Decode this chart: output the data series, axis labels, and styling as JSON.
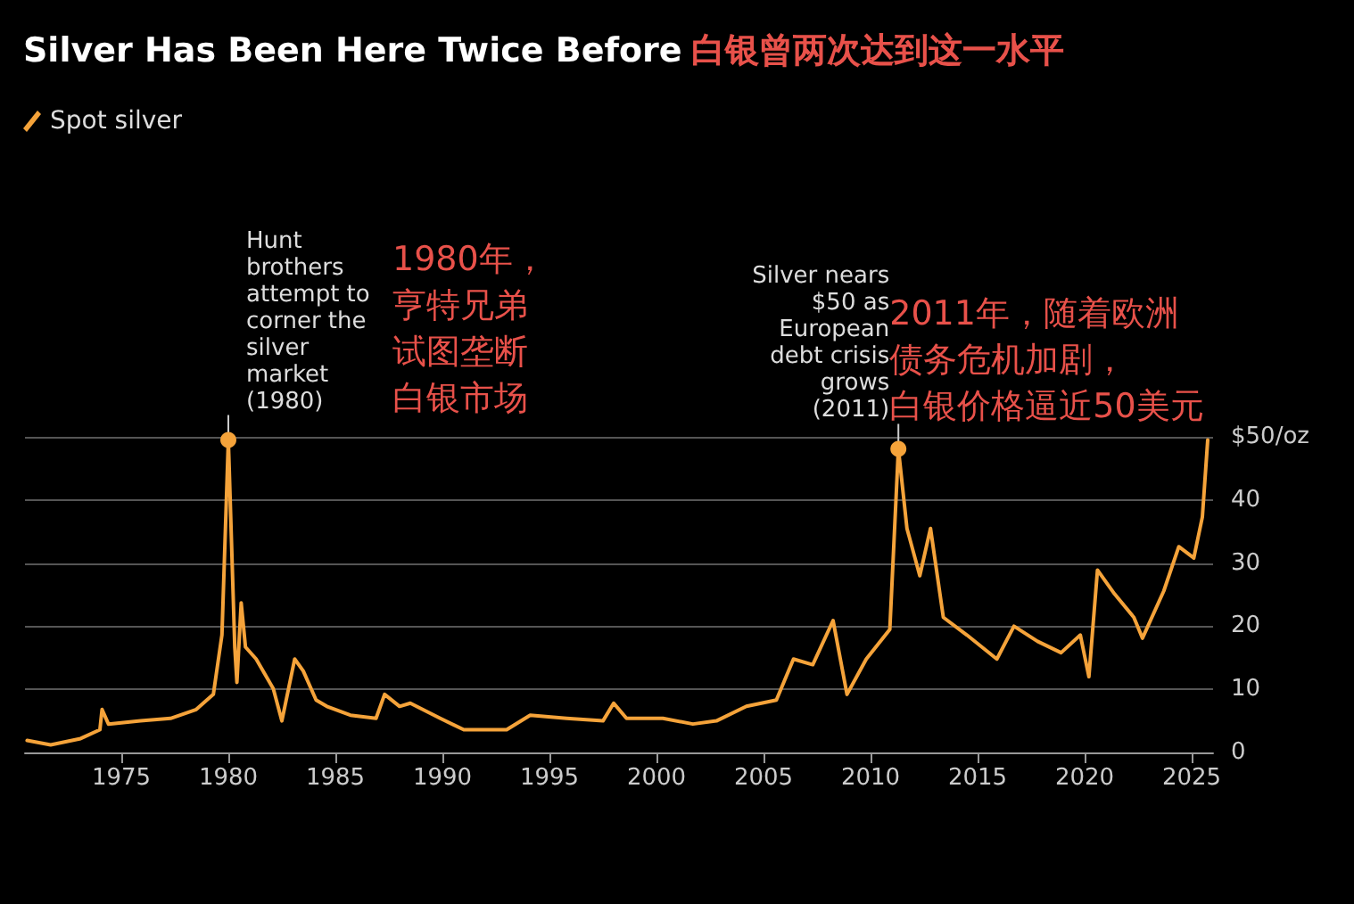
{
  "chart_data": {
    "type": "line",
    "title": "Silver Has Been Here Twice Before",
    "subtitle": "白银曾两次达到这一水平",
    "x": [
      1970.6,
      1971.7,
      1973.1,
      1974.0,
      1974.1,
      1974.4,
      1975.9,
      1977.3,
      1978.5,
      1979.3,
      1979.7,
      1980.0,
      1980.3,
      1980.4,
      1980.6,
      1980.8,
      1981.3,
      1982.1,
      1982.5,
      1983.1,
      1983.5,
      1984.1,
      1984.6,
      1985.7,
      1986.9,
      1987.3,
      1988.0,
      1988.5,
      1989.9,
      1991.0,
      1993.0,
      1994.1,
      1995.8,
      1997.5,
      1998.0,
      1998.6,
      2000.3,
      2001.7,
      2002.8,
      2004.2,
      2005.6,
      2006.4,
      2007.3,
      2008.25,
      2008.9,
      2009.8,
      2010.9,
      2011.3,
      2011.7,
      2012.3,
      2012.8,
      2013.4,
      2014.5,
      2015.9,
      2016.7,
      2017.8,
      2018.9,
      2019.8,
      2020.2,
      2020.6,
      2021.4,
      2022.3,
      2022.7,
      2023.7,
      2024.4,
      2025.1,
      2025.5,
      2025.75
    ],
    "series": [
      {
        "name": "Spot silver",
        "color": "#f5a33a",
        "values": [
          1.9,
          1.2,
          2.2,
          3.6,
          6.8,
          4.5,
          5.0,
          5.4,
          6.8,
          9.2,
          18.6,
          49.5,
          16.7,
          11.1,
          23.7,
          16.7,
          14.8,
          10.1,
          5.0,
          14.8,
          12.9,
          8.3,
          7.3,
          5.9,
          5.4,
          9.2,
          7.3,
          7.8,
          5.4,
          3.6,
          3.6,
          5.9,
          5.4,
          5.0,
          7.8,
          5.4,
          5.4,
          4.5,
          5.0,
          7.3,
          8.3,
          14.8,
          13.9,
          20.9,
          9.2,
          14.8,
          19.5,
          48.1,
          35.5,
          28.0,
          35.5,
          21.4,
          18.6,
          14.8,
          20.0,
          17.6,
          15.8,
          18.6,
          12.0,
          28.9,
          25.1,
          21.4,
          18.1,
          25.6,
          32.6,
          30.8,
          37.3,
          49.5
        ]
      }
    ],
    "xlim": [
      1970.5,
      2026
    ],
    "xticks": [
      1975,
      1980,
      1985,
      1990,
      1995,
      2000,
      2005,
      2010,
      2015,
      2020,
      2025
    ],
    "ylim": [
      0,
      50
    ],
    "yticks": [
      0,
      10,
      20,
      30,
      40,
      {
        "value": 50,
        "label": "$50/oz"
      }
    ],
    "grid": "y",
    "legend": "top left",
    "marker": "none",
    "line_style": "solid",
    "annotations": [
      {
        "text": "Hunt\nbrothers\nattempt to\ncorner the\nsilver\nmarket\n(1980)",
        "x": 1980.0,
        "y": 49.5
      },
      "1980年，",
      "亨特兄弟",
      "试图垄断",
      "白银市场",
      {
        "text": "Silver nears\n$50 as\nEuropean\ndebt crisis\ngrows\n(2011)",
        "x": 2011.3,
        "y": 48.1
      },
      "2011年，随着欧洲",
      "债务危机加剧，",
      "白银价格逼近50美元"
    ]
  }
}
